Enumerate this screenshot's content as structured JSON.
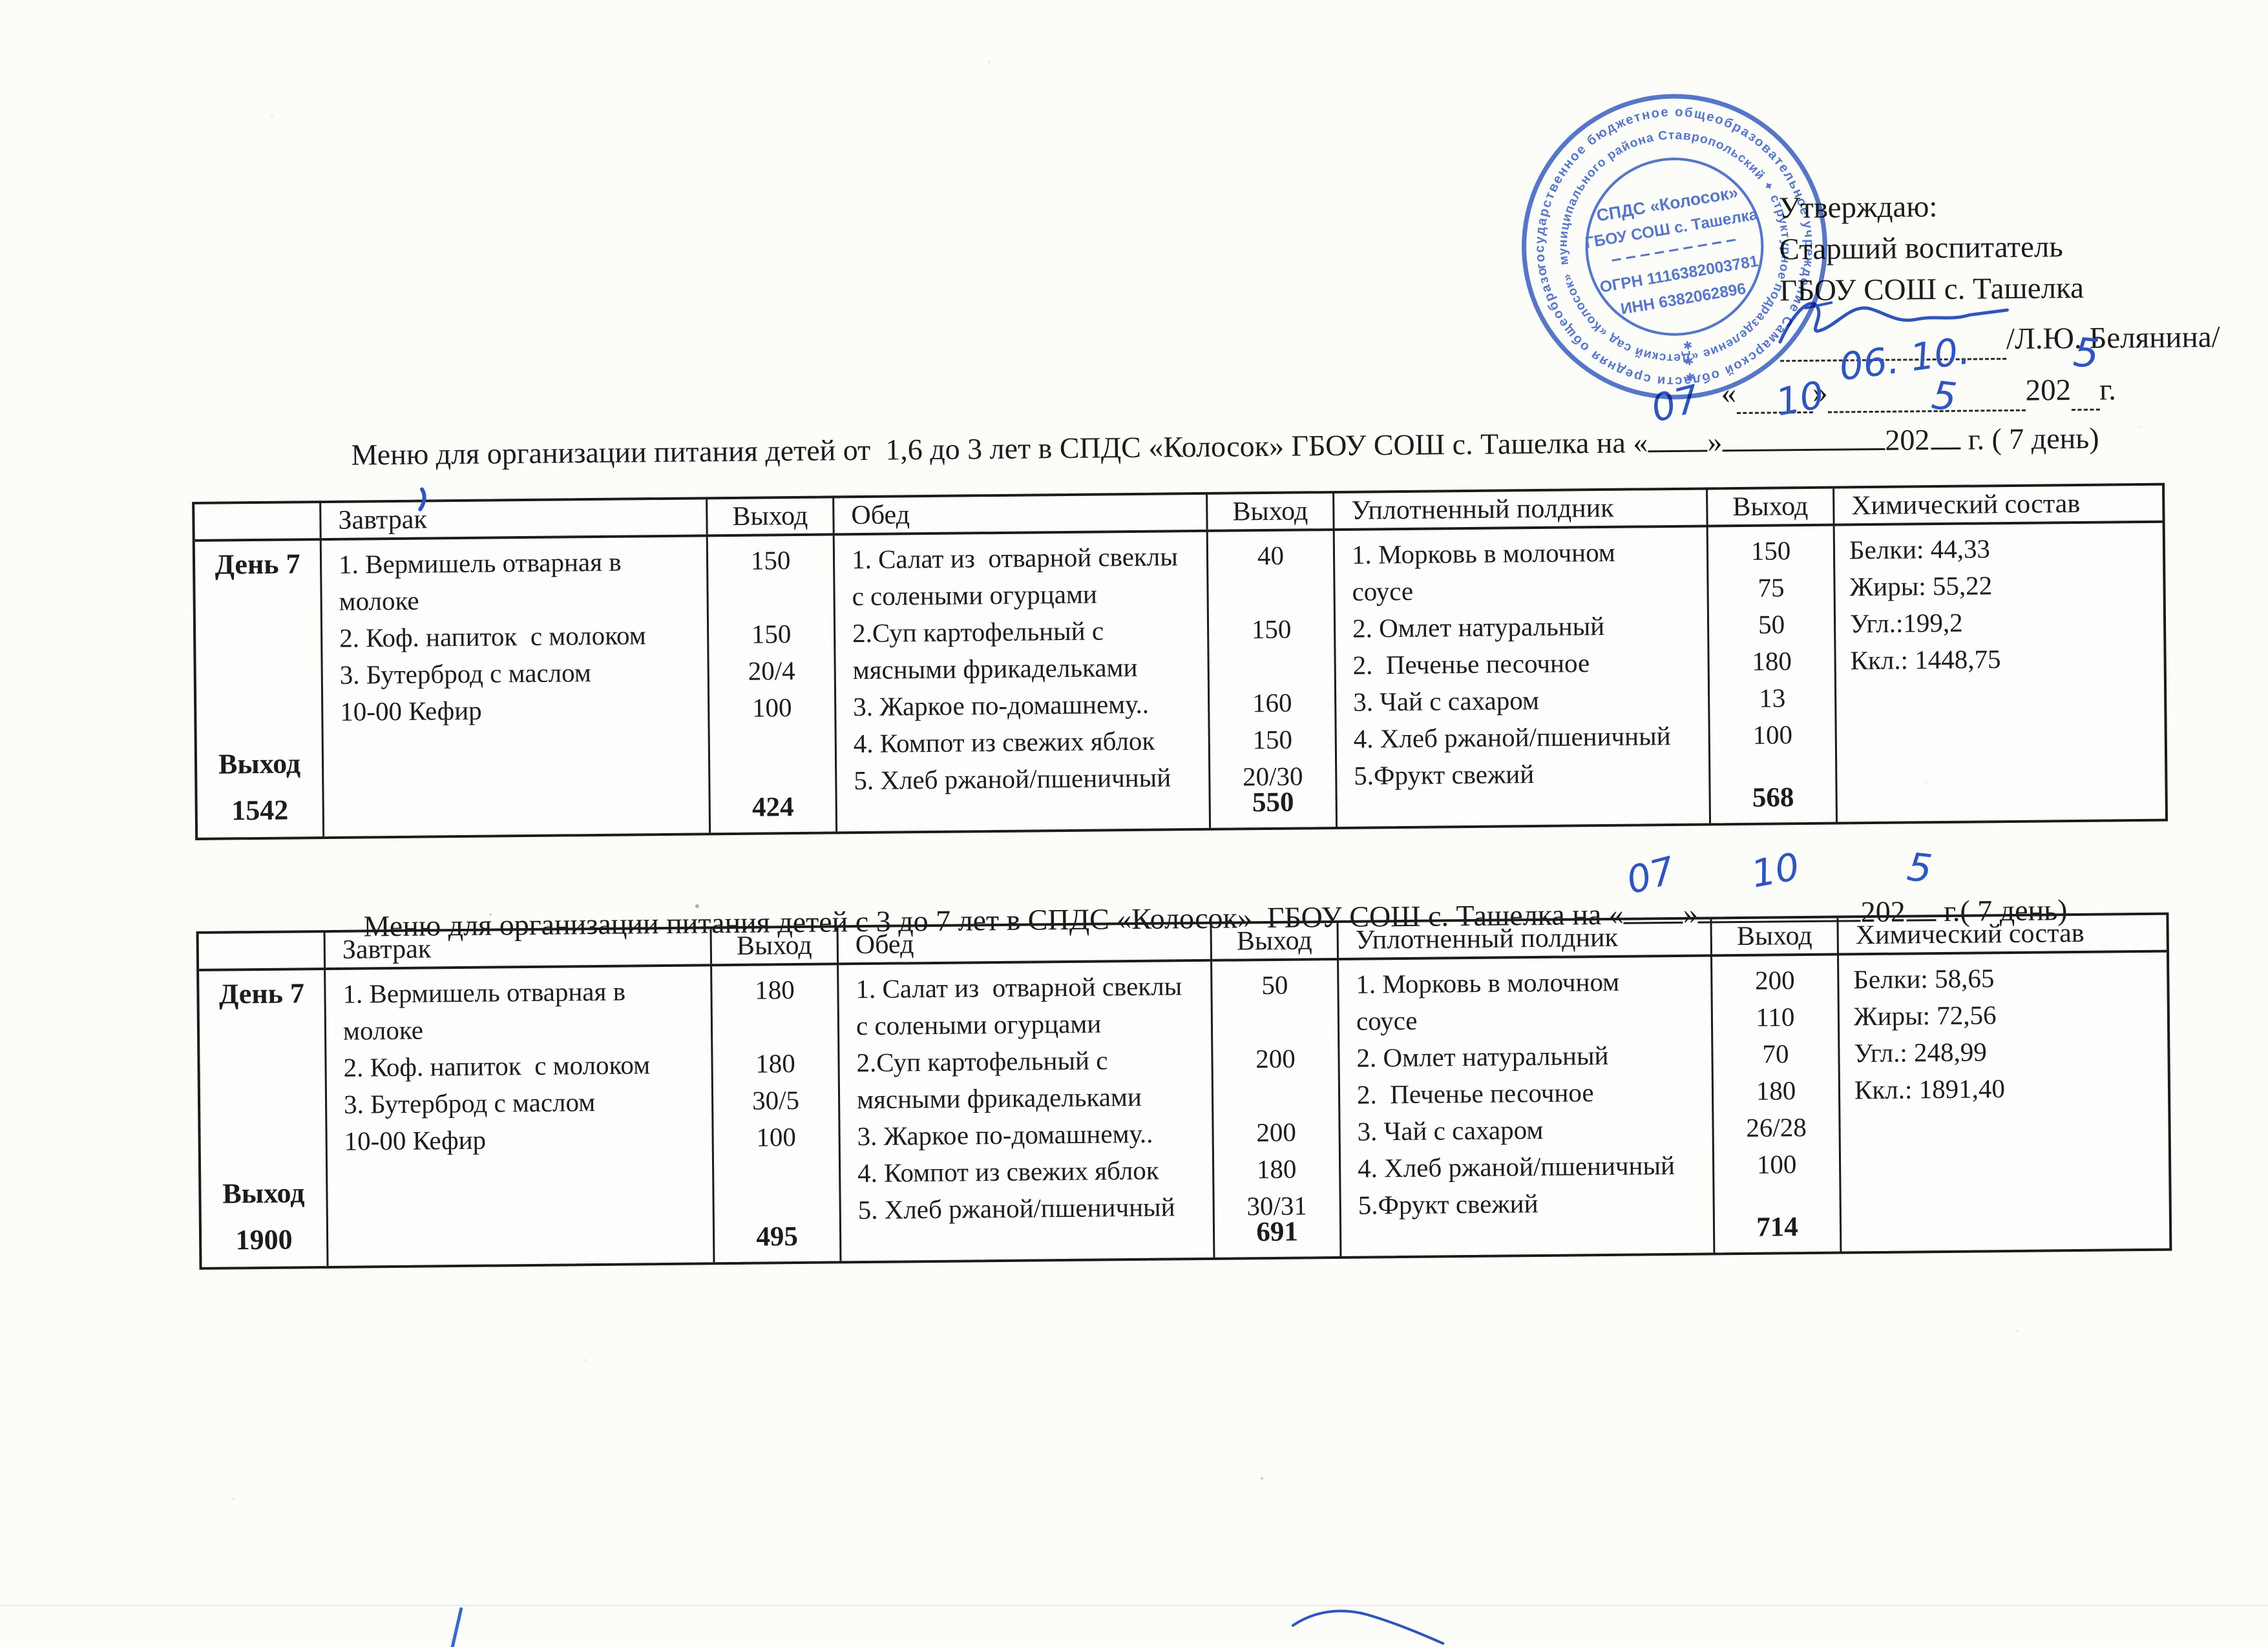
{
  "approval": {
    "approve_label": "Утверждаю:",
    "role_line": "Старший воспитатель",
    "org_line": "ГБОУ СОШ с. Ташелка",
    "signature_name": "/Л.Ю. Белянина/",
    "quote_open": "«",
    "quote_close": "»",
    "date_hw": "06. 10.",
    "year_printed": "202",
    "year_hw": "5",
    "year_suffix": " г."
  },
  "stamp": {
    "color": "#3f63bf",
    "ring_outer": "государственное бюджетное общеобразовательное учреждение Самарской области средняя общеобразовательная школа с. Ташелка",
    "ring_inner": "муниципального района Ставропольский ✦ структурное подразделение «Детский сад «Колосок»",
    "center_line1": "СПДС «Колосок»",
    "center_line2": "ГБОУ СОШ с. Ташелка",
    "ogrn": "ОГРН 1116382003781",
    "inn": "ИНН 6382062896",
    "stars": "✱"
  },
  "titles": [
    {
      "prefix": "Меню для организации питания детей от  1,6 до 3 лет в СПДС «Колосок» ГБОУ СОШ с. Ташелка на ",
      "quote_open": "«",
      "day_hw": "07",
      "quote_close": "»",
      "month_hw": "10",
      "year_printed": "202",
      "year_hw": "5",
      "suffix": " г. ( 7 день)"
    },
    {
      "prefix": "Меню для организации питания детей с 3 до 7 лет в СПДС «Колосок»  ГБОУ СОШ с. Ташелка на ",
      "quote_open": "«",
      "day_hw": "07",
      "quote_close": "»",
      "month_hw": "10",
      "year_printed": "202",
      "year_hw": "5",
      "suffix": " г.( 7 день)"
    }
  ],
  "tables": [
    {
      "day_label": "День 7",
      "day_total_label": "Выход",
      "day_total_value": "1542",
      "headers": [
        "Завтрак",
        "Выход",
        "Обед",
        "Выход",
        "Уплотненный полдник",
        "Выход",
        "Химический состав"
      ],
      "breakfast": {
        "lines": [
          "1. Вермишель отварная в",
          "молоке",
          "2. Коф. напиток  с молоком",
          "3. Бутерброд с маслом",
          "10-00 Кефир"
        ],
        "portions": [
          "150",
          "",
          "150",
          "20/4",
          "100"
        ],
        "total": "424"
      },
      "lunch": {
        "lines": [
          "1. Салат из  отварной свеклы",
          "с солеными огурцами",
          "2.Суп картофельный с",
          "мясными фрикадельками",
          "3. Жаркое по-домашнему..",
          "4. Компот из свежих яблок",
          "5. Хлеб ржаной/пшеничный"
        ],
        "portions": [
          "40",
          "",
          "150",
          "",
          "160",
          "150",
          "20/30"
        ],
        "total": "550"
      },
      "snack": {
        "lines": [
          "1. Морковь в молочном",
          "соусе",
          "2. Омлет натуральный",
          "2.  Печенье песочное",
          "3. Чай с сахаром",
          "4. Хлеб ржаной/пшеничный",
          "5.Фрукт свежий"
        ],
        "portions": [
          "150",
          "75",
          "50",
          "180",
          "13",
          "100",
          ""
        ],
        "total": "568"
      },
      "chem": [
        "Белки: 44,33",
        "Жиры: 55,22",
        "Угл.:199,2",
        "Ккл.: 1448,75"
      ]
    },
    {
      "day_label": "День 7",
      "day_total_label": "Выход",
      "day_total_value": "1900",
      "headers": [
        "Завтрак",
        "Выход",
        "Обед",
        "Выход",
        "Уплотненный полдник",
        "Выход",
        "Химический состав"
      ],
      "breakfast": {
        "lines": [
          "1. Вермишель отварная в",
          "молоке",
          "2. Коф. напиток  с молоком",
          "3. Бутерброд с маслом",
          "10-00 Кефир"
        ],
        "portions": [
          "180",
          "",
          "180",
          "30/5",
          "100"
        ],
        "total": "495"
      },
      "lunch": {
        "lines": [
          "1. Салат из  отварной свеклы",
          "с солеными огурцами",
          "2.Суп картофельный с",
          "мясными фрикадельками",
          "3. Жаркое по-домашнему..",
          "4. Компот из свежих яблок",
          "5. Хлеб ржаной/пшеничный"
        ],
        "portions": [
          "50",
          "",
          "200",
          "",
          "200",
          "180",
          "30/31"
        ],
        "total": "691"
      },
      "snack": {
        "lines": [
          "1. Морковь в молочном",
          "соусе",
          "2. Омлет натуральный",
          "2.  Печенье песочное",
          "3. Чай с сахаром",
          "4. Хлеб ржаной/пшеничный",
          "5.Фрукт свежий"
        ],
        "portions": [
          "200",
          "110",
          "70",
          "180",
          "26/28",
          "100",
          ""
        ],
        "total": "714"
      },
      "chem": [
        "Белки: 58,65",
        "Жиры: 72,56",
        "Угл.: 248,99",
        "Ккл.: 1891,40"
      ]
    }
  ]
}
